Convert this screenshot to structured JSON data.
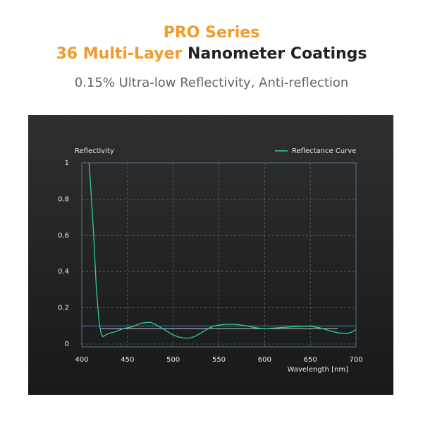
{
  "header": {
    "line1": "PRO Series",
    "line2_highlight": "36 Multi-Layer",
    "line2_rest": "Nanometer Coatings",
    "tagline": "0.15% Ultra-low Reflectivity, Anti-reflection"
  },
  "chart_data": {
    "type": "line",
    "y_label": "Reflectivity",
    "x_label": "Wavelength [nm]",
    "x": [
      408,
      410,
      413,
      416,
      419,
      421,
      423,
      426,
      430,
      435,
      440,
      445,
      450,
      455,
      460,
      465,
      470,
      475,
      480,
      485,
      490,
      495,
      500,
      505,
      510,
      515,
      520,
      525,
      530,
      535,
      540,
      545,
      550,
      560,
      570,
      580,
      590,
      600,
      610,
      620,
      630,
      640,
      650,
      660,
      670,
      680,
      690,
      695,
      700
    ],
    "series": [
      {
        "name": "Reflectance Curve",
        "color": "#2fd08a",
        "values": [
          1.0,
          0.85,
          0.6,
          0.3,
          0.12,
          0.06,
          0.04,
          0.05,
          0.06,
          0.065,
          0.075,
          0.085,
          0.09,
          0.095,
          0.105,
          0.115,
          0.118,
          0.12,
          0.11,
          0.095,
          0.08,
          0.065,
          0.05,
          0.04,
          0.035,
          0.032,
          0.035,
          0.045,
          0.06,
          0.075,
          0.09,
          0.1,
          0.105,
          0.11,
          0.108,
          0.1,
          0.09,
          0.085,
          0.088,
          0.092,
          0.095,
          0.098,
          0.098,
          0.09,
          0.075,
          0.062,
          0.058,
          0.065,
          0.08
        ]
      }
    ],
    "reference_lines": [
      {
        "y": 0.1,
        "color": "#3d82c4"
      },
      {
        "y": 0.085,
        "x": [
          420,
          680
        ],
        "color": "#cfcfcf"
      }
    ],
    "xlim": [
      400,
      700
    ],
    "xticks": [
      400,
      450,
      500,
      550,
      600,
      650,
      700
    ],
    "ylim": [
      0,
      1
    ],
    "yticks": [
      0,
      0.2,
      0.4,
      0.6,
      0.8,
      1
    ],
    "grid": true,
    "legend": "top-right"
  }
}
